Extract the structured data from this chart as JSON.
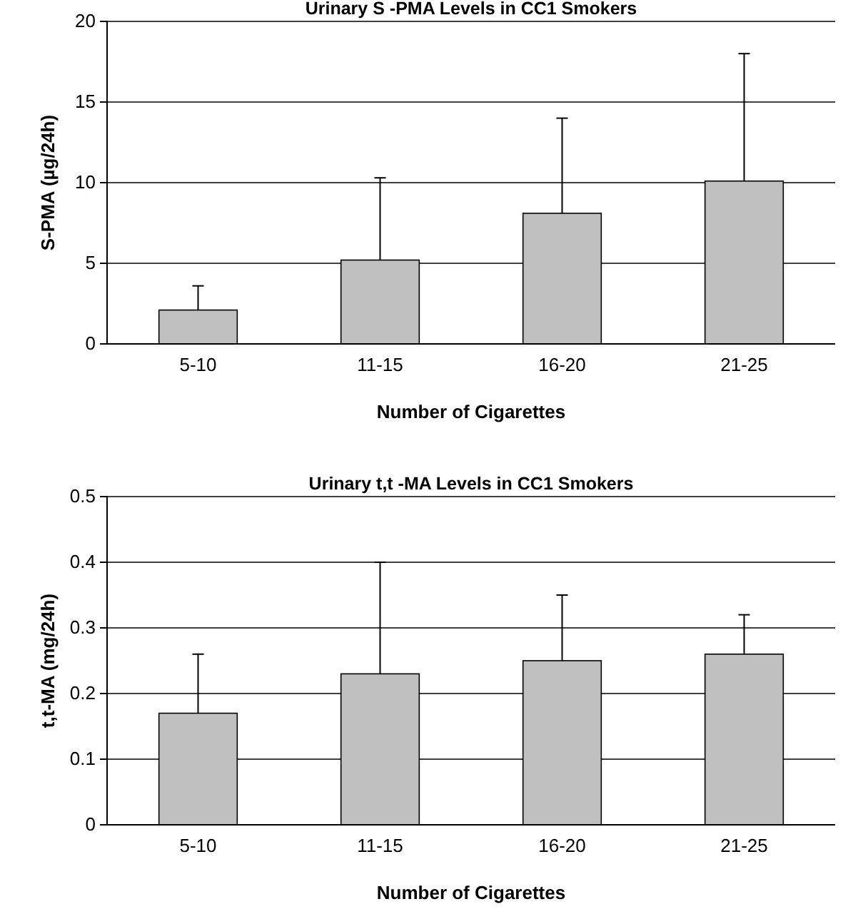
{
  "chart_data": [
    {
      "type": "bar",
      "title": "Urinary S -PMA Levels in CC1 Smokers",
      "xlabel": "Number of Cigarettes",
      "ylabel": "S-PMA (µg/24h)",
      "categories": [
        "5-10",
        "11-15",
        "16-20",
        "21-25"
      ],
      "values": [
        2.1,
        5.2,
        8.1,
        10.1
      ],
      "errors": [
        [
          2.1,
          3.6
        ],
        [
          5.2,
          10.3
        ],
        [
          8.1,
          14.0
        ],
        [
          10.1,
          18.0
        ]
      ],
      "color": "#c0c0c0",
      "ylim": [
        0,
        20
      ],
      "yticks": [
        0,
        5,
        10,
        15,
        20
      ],
      "grid": "y"
    },
    {
      "type": "bar",
      "title": "Urinary t,t -MA Levels in CC1 Smokers",
      "xlabel": "Number of Cigarettes",
      "ylabel": "t,t-MA (mg/24h)",
      "categories": [
        "5-10",
        "11-15",
        "16-20",
        "21-25"
      ],
      "values": [
        0.17,
        0.23,
        0.25,
        0.26
      ],
      "errors": [
        [
          0.17,
          0.26
        ],
        [
          0.23,
          0.4
        ],
        [
          0.25,
          0.35
        ],
        [
          0.26,
          0.32
        ]
      ],
      "color": "#c0c0c0",
      "ylim": [
        0,
        0.5
      ],
      "yticks": [
        0,
        0.1,
        0.2,
        0.3,
        0.4,
        0.5
      ],
      "grid": "y"
    }
  ]
}
